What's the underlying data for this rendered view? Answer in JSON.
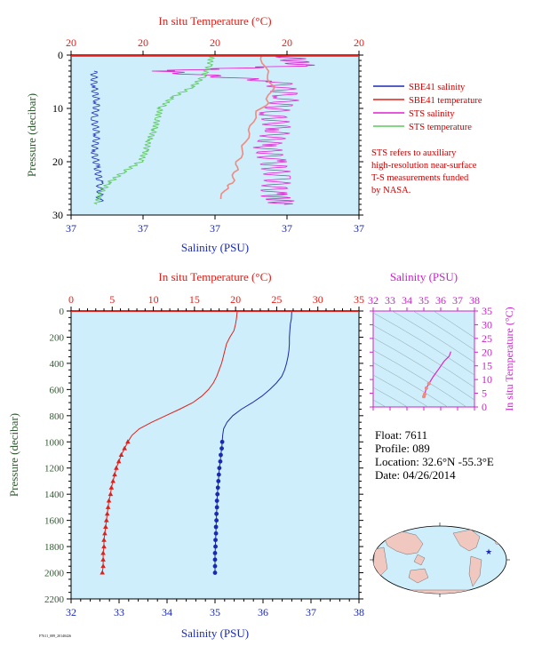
{
  "colors": {
    "plot_bg": "#cdeefa",
    "salinity": "#1a2ab0",
    "temperature": "#e0201a",
    "sts_salinity": "#e020d0",
    "sts_temperature": "#5ac85a",
    "pressure_axis": "#2e5a2e",
    "ts_axis": "#cc22cc"
  },
  "top_chart": {
    "top_axis_label": "In situ Temperature (°C)",
    "top_ticks": [
      "20",
      "20",
      "20",
      "20",
      "20"
    ],
    "bottom_axis_label": "Salinity (PSU)",
    "bottom_ticks": [
      "37",
      "37",
      "37",
      "37",
      "37"
    ],
    "y_axis_label": "Pressure (decibar)",
    "y_ticks": [
      "0",
      "10",
      "20",
      "30"
    ],
    "legend": [
      {
        "label": "SBE41 salinity",
        "color_key": "salinity"
      },
      {
        "label": "SBE41 temperature",
        "color_key": "temperature"
      },
      {
        "label": "STS salinity",
        "color_key": "sts_salinity"
      },
      {
        "label": "STS temperature",
        "color_key": "sts_temperature"
      }
    ],
    "note": [
      "STS refers to auxiliary",
      "high-resolution near-surface",
      "T-S measurements funded",
      "by NASA."
    ]
  },
  "main_chart": {
    "top_axis_label": "In situ Temperature (°C)",
    "top_ticks": [
      "0",
      "5",
      "10",
      "15",
      "20",
      "25",
      "30",
      "35"
    ],
    "bottom_axis_label": "Salinity (PSU)",
    "bottom_ticks": [
      "32",
      "33",
      "34",
      "35",
      "36",
      "37",
      "38"
    ],
    "y_axis_label": "Pressure (decibar)",
    "y_ticks": [
      "0",
      "200",
      "400",
      "600",
      "800",
      "1000",
      "1200",
      "1400",
      "1600",
      "1800",
      "2000",
      "2200"
    ]
  },
  "ts_chart": {
    "top_axis_label": "Salinity (PSU)",
    "top_ticks": [
      "32",
      "33",
      "34",
      "35",
      "36",
      "37",
      "38"
    ],
    "right_axis_label": "In situ Temperature (°C)",
    "right_ticks": [
      "0",
      "5",
      "10",
      "15",
      "20",
      "25",
      "30",
      "35"
    ]
  },
  "float_info": {
    "float": "Float:  7611",
    "profile": "Profile:  089",
    "location": "Location:  32.6°N  -55.3°E",
    "date": "Date:  04/26/2014"
  },
  "footer_id": "F7611_089_20140426",
  "chart_data": [
    {
      "type": "line",
      "title": "",
      "xlabel": "Salinity (PSU)",
      "x2label": "In situ Temperature (°C)",
      "ylabel": "Pressure (decibar)",
      "ylim": [
        0,
        2200
      ],
      "xlim_salinity": [
        32,
        38
      ],
      "xlim_temperature": [
        0,
        35
      ],
      "grid": false,
      "series": [
        {
          "name": "",
          "quantity": "temperature",
          "pressure": [
            0,
            60,
            100,
            150,
            200,
            250,
            300,
            350,
            400,
            450,
            500,
            550,
            600,
            650,
            700,
            750,
            800,
            850,
            900,
            950,
            1000
          ],
          "values": [
            20.2,
            20.1,
            20.0,
            19.8,
            19.3,
            18.9,
            18.7,
            18.5,
            18.3,
            18.0,
            17.7,
            17.3,
            16.7,
            15.9,
            14.8,
            13.2,
            11.5,
            9.8,
            8.3,
            7.4,
            6.9
          ]
        },
        {
          "name": "",
          "quantity": "salinity",
          "pressure": [
            0,
            60,
            100,
            150,
            200,
            250,
            300,
            350,
            400,
            450,
            500,
            550,
            600,
            650,
            700,
            750,
            800,
            850,
            900,
            950,
            1000
          ],
          "values": [
            36.6,
            36.59,
            36.57,
            36.56,
            36.55,
            36.55,
            36.54,
            36.52,
            36.49,
            36.45,
            36.39,
            36.28,
            36.14,
            35.98,
            35.78,
            35.55,
            35.37,
            35.25,
            35.18,
            35.16,
            35.15
          ]
        },
        {
          "name": "",
          "quantity": "temperature",
          "marker": "triangle",
          "pressure": [
            1000,
            1050,
            1100,
            1150,
            1200,
            1250,
            1300,
            1350,
            1400,
            1450,
            1500,
            1550,
            1600,
            1650,
            1700,
            1750,
            1800,
            1850,
            1900,
            1950,
            2000
          ],
          "values": [
            6.9,
            6.5,
            6.1,
            5.8,
            5.5,
            5.3,
            5.1,
            4.9,
            4.8,
            4.6,
            4.5,
            4.4,
            4.3,
            4.2,
            4.1,
            4.0,
            4.0,
            3.9,
            3.9,
            3.9,
            3.8
          ]
        },
        {
          "name": "",
          "quantity": "salinity",
          "marker": "circle",
          "pressure": [
            1000,
            1050,
            1100,
            1150,
            1200,
            1250,
            1300,
            1350,
            1400,
            1450,
            1500,
            1550,
            1600,
            1650,
            1700,
            1750,
            1800,
            1850,
            1900,
            1950,
            2000
          ],
          "values": [
            35.15,
            35.14,
            35.12,
            35.11,
            35.09,
            35.08,
            35.07,
            35.06,
            35.05,
            35.04,
            35.04,
            35.03,
            35.03,
            35.02,
            35.02,
            35.01,
            35.01,
            35.0,
            35.0,
            35.0,
            35.0
          ]
        }
      ]
    },
    {
      "type": "line",
      "title": "",
      "xlabel": "Salinity (PSU)",
      "x2label": "In situ Temperature (°C)",
      "ylabel": "Pressure (decibar)",
      "ylim": [
        0,
        30
      ],
      "legend_position": "right",
      "series": [
        {
          "name": "SBE41 salinity",
          "pressure": [
            3,
            6,
            9,
            12,
            15,
            18,
            21,
            24,
            27.5
          ],
          "x_fraction": [
            0.08,
            0.08,
            0.09,
            0.08,
            0.09,
            0.08,
            0.09,
            0.1,
            0.1
          ]
        },
        {
          "name": "STS salinity",
          "pressure": [
            0,
            2,
            3,
            5,
            8,
            11,
            14,
            17,
            20,
            23,
            26,
            28
          ],
          "x_fraction": [
            0.75,
            0.8,
            0.3,
            0.72,
            0.75,
            0.7,
            0.72,
            0.68,
            0.7,
            0.72,
            0.7,
            0.74
          ]
        },
        {
          "name": "STS temperature",
          "pressure": [
            0,
            2,
            4,
            6,
            8,
            10,
            12,
            14,
            16,
            18,
            20,
            22,
            24,
            26,
            28
          ],
          "x_fraction": [
            0.49,
            0.48,
            0.46,
            0.42,
            0.35,
            0.31,
            0.3,
            0.29,
            0.27,
            0.26,
            0.24,
            0.18,
            0.13,
            0.1,
            0.09
          ]
        },
        {
          "name": "SBE41 temperature",
          "pressure": [
            0,
            3,
            6,
            9,
            11,
            14,
            17,
            20,
            22,
            24,
            25,
            27
          ],
          "x_fraction": [
            0.66,
            0.68,
            0.7,
            0.68,
            0.64,
            0.62,
            0.6,
            0.58,
            0.57,
            0.56,
            0.54,
            0.52
          ]
        }
      ]
    },
    {
      "type": "line",
      "title": "",
      "xlabel": "Salinity (PSU)",
      "ylabel": "In situ Temperature (°C)",
      "xlim": [
        32,
        38
      ],
      "ylim": [
        0,
        35
      ],
      "series": [
        {
          "name": "",
          "salinity": [
            35.0,
            35.05,
            35.15,
            35.3,
            35.55,
            35.9,
            36.2,
            36.5,
            36.6
          ],
          "temperature": [
            3.8,
            4.6,
            6.9,
            8.5,
            11.0,
            14.0,
            16.7,
            18.5,
            20.2
          ]
        }
      ]
    }
  ]
}
